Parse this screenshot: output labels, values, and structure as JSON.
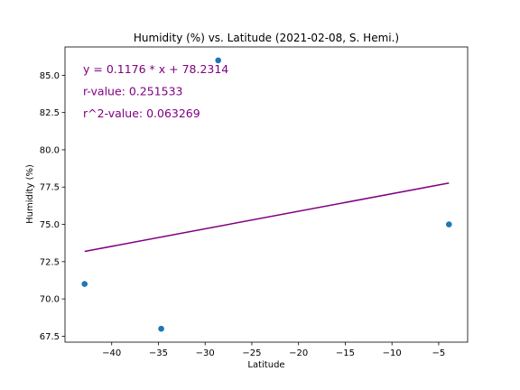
{
  "chart_data": {
    "type": "scatter",
    "title": "Humidity (%) vs. Latitude (2021-02-08, S. Hemi.)",
    "xlabel": "Latitude",
    "ylabel": "Humidity (%)",
    "xlim": [
      -45.0,
      -1.9
    ],
    "ylim": [
      67.1,
      86.9
    ],
    "xticks": [
      -40,
      -35,
      -30,
      -25,
      -20,
      -15,
      -10,
      -5
    ],
    "xtick_labels": [
      "−40",
      "−35",
      "−30",
      "−25",
      "−20",
      "−15",
      "−10",
      "−5"
    ],
    "yticks": [
      67.5,
      70.0,
      72.5,
      75.0,
      77.5,
      80.0,
      82.5,
      85.0
    ],
    "ytick_labels": [
      "67.5",
      "70.0",
      "72.5",
      "75.0",
      "77.5",
      "80.0",
      "82.5",
      "85.0"
    ],
    "grid": false,
    "point_color": "#1f77b4",
    "line_color": "#800080",
    "points": [
      {
        "x": -42.9,
        "y": 71.0
      },
      {
        "x": -34.7,
        "y": 68.0
      },
      {
        "x": -28.6,
        "y": 86.0
      },
      {
        "x": -3.9,
        "y": 75.0
      }
    ],
    "regression": {
      "slope": 0.1176,
      "intercept": 78.2314,
      "x_range": [
        -42.9,
        -3.9
      ]
    },
    "annotations": [
      "y = 0.1176 * x + 78.2314",
      "r-value: 0.251533",
      "r^2-value: 0.063269"
    ]
  }
}
